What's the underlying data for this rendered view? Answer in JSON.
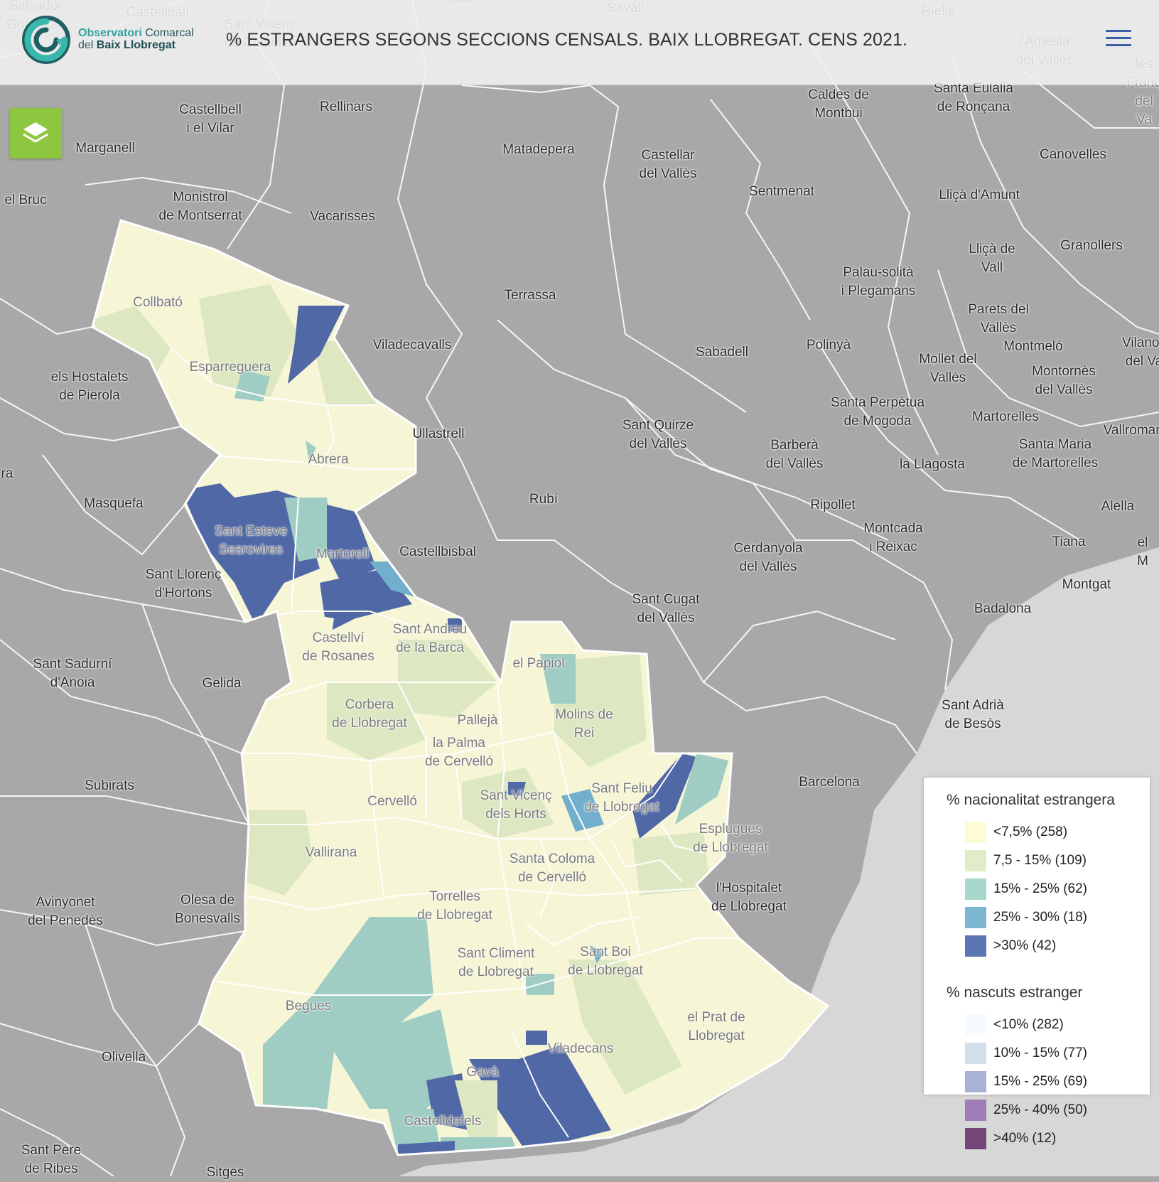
{
  "header": {
    "logo_line1_a": "Observatori",
    "logo_line1_b": " Comarcal",
    "logo_line2_a": "del ",
    "logo_line2_b": "Baix Llobregat",
    "title": "% ESTRANGERS SEGONS SECCIONS CENSALS. BAIX LLOBREGAT. CENS 2021.",
    "menu_icon": "hamburger-menu-icon"
  },
  "controls": {
    "layers_icon": "layers-icon"
  },
  "colors": {
    "background_region": "#a8a8a8",
    "sea": "#d6d6d6",
    "c1": "#f6f5d6",
    "c2": "#dde8c2",
    "c3": "#9fcdc4",
    "c4": "#72afcc",
    "c5": "#5068a6",
    "n1": "#f4f8fb",
    "n2": "#d3dceb",
    "n3": "#a5add0",
    "n4": "#9e77b5",
    "n5": "#744777"
  },
  "legend": {
    "title1": "% nacionalitat estrangera",
    "items1": [
      {
        "label": "<7,5% (258)",
        "color": "#fdfbd8"
      },
      {
        "label": "7,5 - 15% (109)",
        "color": "#e1ecc8"
      },
      {
        "label": "15% - 25% (62)",
        "color": "#a7d6cd"
      },
      {
        "label": "25% - 30% (18)",
        "color": "#7eb6d1"
      },
      {
        "label": ">30% (42)",
        "color": "#5d76b3"
      }
    ],
    "title2": "% nascuts estranger",
    "items2": [
      {
        "label": "<10% (282)",
        "color": "#f7fbfd"
      },
      {
        "label": "10% - 15% (77)",
        "color": "#d2deec"
      },
      {
        "label": "15% - 25% (69)",
        "color": "#aab1d3"
      },
      {
        "label": "25% - 40% (50)",
        "color": "#a07cb8"
      },
      {
        "label": ">40% (12)",
        "color": "#744577"
      }
    ]
  },
  "places": [
    {
      "name": "Salvador\nGuardiola",
      "dim": true
    },
    {
      "name": "Castellgalí",
      "dim": true
    },
    {
      "name": "Sant Vicenç\nde Castellet",
      "dim": true
    },
    {
      "name": "Mura",
      "dim": true
    },
    {
      "name": "Savall",
      "dim": true
    },
    {
      "name": "Riells",
      "dim": true
    },
    {
      "name": "l'Ametlla\ndel Vallès",
      "dim": true
    },
    {
      "name": "les Franq\ndel Va",
      "dim": true
    },
    {
      "name": "Castellbell\ni el Vilar"
    },
    {
      "name": "Rellinars"
    },
    {
      "name": "Caldes de\nMontbui"
    },
    {
      "name": "Santa Eulàlia\nde Ronçana"
    },
    {
      "name": "Marganell"
    },
    {
      "name": "Matadepera"
    },
    {
      "name": "Castellar\ndel Vallès"
    },
    {
      "name": "Canovelles"
    },
    {
      "name": "el Bruc"
    },
    {
      "name": "Monistrol\nde Montserrat"
    },
    {
      "name": "Vacarisses"
    },
    {
      "name": "Sentmenat"
    },
    {
      "name": "Lliçà d'Amunt"
    },
    {
      "name": "Granollers"
    },
    {
      "name": "Lliçà de\nVall"
    },
    {
      "name": "Palau-solità\ni Plegamans"
    },
    {
      "name": "Collbató",
      "dim": true
    },
    {
      "name": "Terrassa"
    },
    {
      "name": "Parets del\nVallès"
    },
    {
      "name": "Esparreguera",
      "dim": true
    },
    {
      "name": "Viladecavalls"
    },
    {
      "name": "Sabadell"
    },
    {
      "name": "Polinyà"
    },
    {
      "name": "Montmeló"
    },
    {
      "name": "Vilanov\ndel Va"
    },
    {
      "name": "els Hostalets\nde Pierola"
    },
    {
      "name": "Mollet del\nVallès"
    },
    {
      "name": "Montornès\ndel Vallès"
    },
    {
      "name": "Santa Perpètua\nde Mogoda"
    },
    {
      "name": "Ullastrell"
    },
    {
      "name": "Sant Quirze\ndel Vallès"
    },
    {
      "name": "Martorelles"
    },
    {
      "name": "Vallromane"
    },
    {
      "name": "Abrera",
      "dim": true
    },
    {
      "name": "Barberà\ndel Vallès"
    },
    {
      "name": "la Llagosta"
    },
    {
      "name": "Santa Maria\nde Martorelles"
    },
    {
      "name": "ra"
    },
    {
      "name": "Masquefa"
    },
    {
      "name": "Rubí"
    },
    {
      "name": "Ripollet"
    },
    {
      "name": "Alella"
    },
    {
      "name": "Sant Esteve\nSesrovires",
      "dim": true
    },
    {
      "name": "Martorell",
      "dim": true
    },
    {
      "name": "Castellbisbal"
    },
    {
      "name": "Montcada\ni Reixac"
    },
    {
      "name": "Tiana"
    },
    {
      "name": "el M"
    },
    {
      "name": "Cerdanyola\ndel Vallès"
    },
    {
      "name": "Sant Llorenç\nd'Hortons"
    },
    {
      "name": "Montgat"
    },
    {
      "name": "Sant Cugat\ndel Vallès"
    },
    {
      "name": "Badalona"
    },
    {
      "name": "Sant Andreu\nde la Barca",
      "dim": true
    },
    {
      "name": "Castellví\nde Rosanes",
      "dim": true
    },
    {
      "name": "Sant Sadurní\nd'Anoia"
    },
    {
      "name": "el Papiol",
      "dim": true
    },
    {
      "name": "Gelida"
    },
    {
      "name": "Corbera\nde Llobregat",
      "dim": true
    },
    {
      "name": "Pallejà",
      "dim": true
    },
    {
      "name": "Molins de\nRei",
      "dim": true
    },
    {
      "name": "Sant Adrià\nde Besòs"
    },
    {
      "name": "la Palma\nde Cervelló",
      "dim": true
    },
    {
      "name": "Subirats"
    },
    {
      "name": "Barcelona"
    },
    {
      "name": "Sant Feliu\nde Llobregat",
      "dim": true
    },
    {
      "name": "Sant Vicenç\ndels Horts",
      "dim": true
    },
    {
      "name": "Cervelló",
      "dim": true
    },
    {
      "name": "Esplugues\nde Llobregat",
      "dim": true
    },
    {
      "name": "Vallirana",
      "dim": true
    },
    {
      "name": "Santa Coloma\nde Cervelló",
      "dim": true
    },
    {
      "name": "l'Hospitalet\nde Llobregat"
    },
    {
      "name": "Avinyonet\ndel Penedès"
    },
    {
      "name": "Olesa de\nBonesvalls"
    },
    {
      "name": "Torrelles\nde Llobregat",
      "dim": true
    },
    {
      "name": "Sant Climent\nde Llobregat",
      "dim": true
    },
    {
      "name": "Sant Boi\nde Llobregat",
      "dim": true
    },
    {
      "name": "Begues",
      "dim": true
    },
    {
      "name": "el Prat de\nLlobregat",
      "dim": true
    },
    {
      "name": "Viladecans",
      "dim": true
    },
    {
      "name": "Olivella"
    },
    {
      "name": "Gavà",
      "dim": true
    },
    {
      "name": "Castelldefels",
      "dim": true
    },
    {
      "name": "Sant Pere\nde Ribes"
    },
    {
      "name": "Sitges"
    }
  ]
}
